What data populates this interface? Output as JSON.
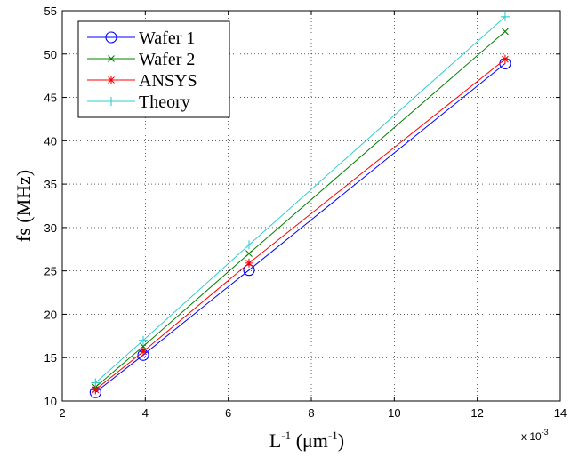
{
  "chart_data": {
    "type": "line",
    "xlabel": {
      "base": "L",
      "base_sup": "-1",
      "unit_open": " (μm",
      "unit_sup": "-1",
      "unit_close": ")"
    },
    "ylabel": "fs (MHz)",
    "x_multiplier": {
      "text": "x 10",
      "exp": "-3"
    },
    "xlim": [
      2,
      14
    ],
    "ylim": [
      10,
      55
    ],
    "x_ticks": [
      2,
      4,
      6,
      8,
      10,
      12,
      14
    ],
    "y_ticks": [
      10,
      15,
      20,
      25,
      30,
      35,
      40,
      45,
      50,
      55
    ],
    "grid": true,
    "legend_position": "top-left",
    "series": [
      {
        "name": "Wafer 1",
        "color": "#0000ff",
        "marker": "circle",
        "x": [
          2.8,
          3.95,
          6.5,
          12.67
        ],
        "y": [
          11.0,
          15.3,
          25.1,
          48.9
        ]
      },
      {
        "name": "Wafer 2",
        "color": "#008000",
        "marker": "x",
        "x": [
          2.8,
          3.95,
          6.5,
          12.67
        ],
        "y": [
          11.6,
          16.3,
          27.0,
          52.6
        ]
      },
      {
        "name": "ANSYS",
        "color": "#ff0000",
        "marker": "star",
        "x": [
          2.8,
          3.95,
          6.5,
          12.67
        ],
        "y": [
          11.3,
          15.7,
          25.9,
          49.4
        ]
      },
      {
        "name": "Theory",
        "color": "#33cccc",
        "marker": "plus",
        "x": [
          2.8,
          3.95,
          6.5,
          12.67
        ],
        "y": [
          12.1,
          17.0,
          28.0,
          54.3
        ]
      }
    ]
  }
}
